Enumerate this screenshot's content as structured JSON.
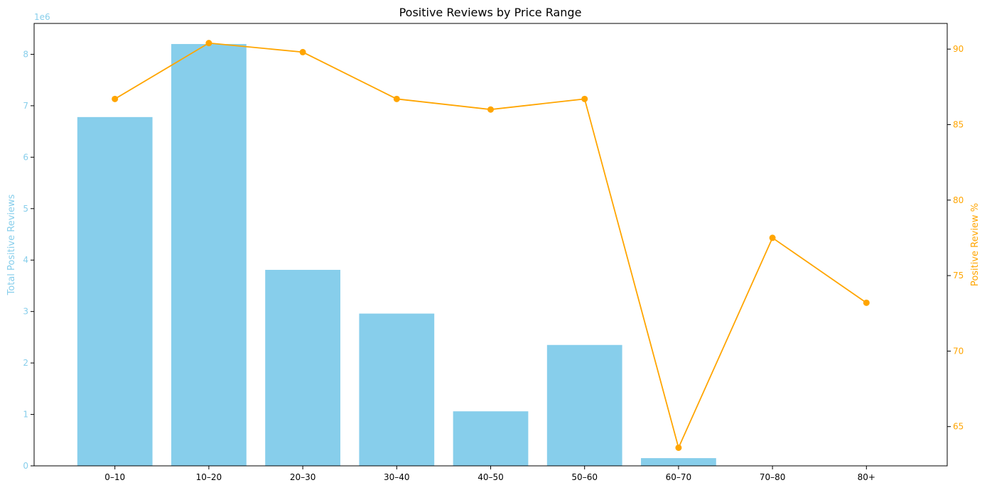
{
  "chart_data": {
    "type": "bar",
    "title": "Positive Reviews by Price Range",
    "categories": [
      "0–10",
      "10–20",
      "20–30",
      "30–40",
      "40–50",
      "50–60",
      "60–70",
      "70–80",
      "80+"
    ],
    "left_axis": {
      "label": "Total Positive Reviews",
      "color": "#87CEEB",
      "offset_text": "1e6",
      "ylim": [
        0,
        8.6
      ],
      "ticks": [
        "0",
        "1",
        "2",
        "3",
        "4",
        "5",
        "6",
        "7",
        "8"
      ]
    },
    "right_axis": {
      "label": "Positive Review %",
      "color": "#FFA500",
      "ylim": [
        62.4,
        91.7
      ],
      "ticks": [
        "65",
        "70",
        "75",
        "80",
        "85",
        "90"
      ]
    },
    "series": [
      {
        "type": "bar",
        "axis": "left",
        "unit_multiplier": 1000000,
        "values": [
          6.78,
          8.2,
          3.81,
          2.96,
          1.06,
          2.35,
          0.15,
          0,
          0
        ]
      },
      {
        "type": "line",
        "axis": "right",
        "values": [
          86.7,
          90.4,
          89.8,
          86.7,
          86.0,
          86.7,
          63.6,
          77.5,
          73.2
        ]
      }
    ]
  }
}
